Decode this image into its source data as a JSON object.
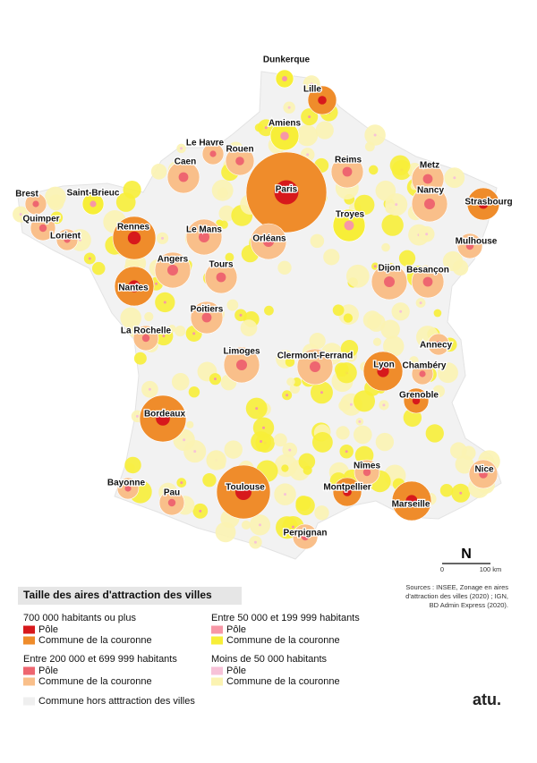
{
  "map": {
    "cities": [
      "Dunkerque",
      "Lille",
      "Amiens",
      "Le Havre",
      "Rouen",
      "Caen",
      "Reims",
      "Metz",
      "Paris",
      "Brest",
      "Saint-Brieuc",
      "Nancy",
      "Strasbourg",
      "Quimper",
      "Troyes",
      "Rennes",
      "Le Mans",
      "Lorient",
      "Orléans",
      "Mulhouse",
      "Angers",
      "Dijon",
      "Besançon",
      "Tours",
      "Nantes",
      "Poitiers",
      "La Rochelle",
      "Annecy",
      "Limoges",
      "Clermont-Ferrand",
      "Lyon",
      "Chambéry",
      "Grenoble",
      "Bordeaux",
      "Nice",
      "Nîmes",
      "Bayonne",
      "Toulouse",
      "Montpellier",
      "Pau",
      "Marseille",
      "Perpignan"
    ]
  },
  "legend": {
    "title": "Taille des aires d'attraction des villes",
    "groups": [
      {
        "label": "700 000 habitants ou plus",
        "items": [
          "Pôle",
          "Commune de la couronne"
        ],
        "colors": [
          "#d7191c",
          "#ef8c2b"
        ]
      },
      {
        "label": "Entre 200 000 et 699 999 habitants",
        "items": [
          "Pôle",
          "Commune de la couronne"
        ],
        "colors": [
          "#ee6670",
          "#f9bf8a"
        ]
      },
      {
        "label": "Entre 50 000 et 199 999 habitants",
        "items": [
          "Pôle",
          "Commune de la couronne"
        ],
        "colors": [
          "#f797a6",
          "#f7ee38"
        ]
      },
      {
        "label": "Moins de 50 000 habitants",
        "items": [
          "Pôle",
          "Commune de la couronne"
        ],
        "colors": [
          "#f7c2d8",
          "#fbf3b2"
        ]
      }
    ],
    "other": {
      "label": "Commune hors atttraction des villes",
      "color": "#efefef"
    }
  },
  "scale": {
    "labels": [
      "0",
      "100 km"
    ]
  },
  "north": "N",
  "sources": [
    "Sources : INSEE, Zonage en aires",
    "d'attraction des villes (2020) ; IGN,",
    "BD Admin Express (2020)."
  ],
  "logo": "atu."
}
